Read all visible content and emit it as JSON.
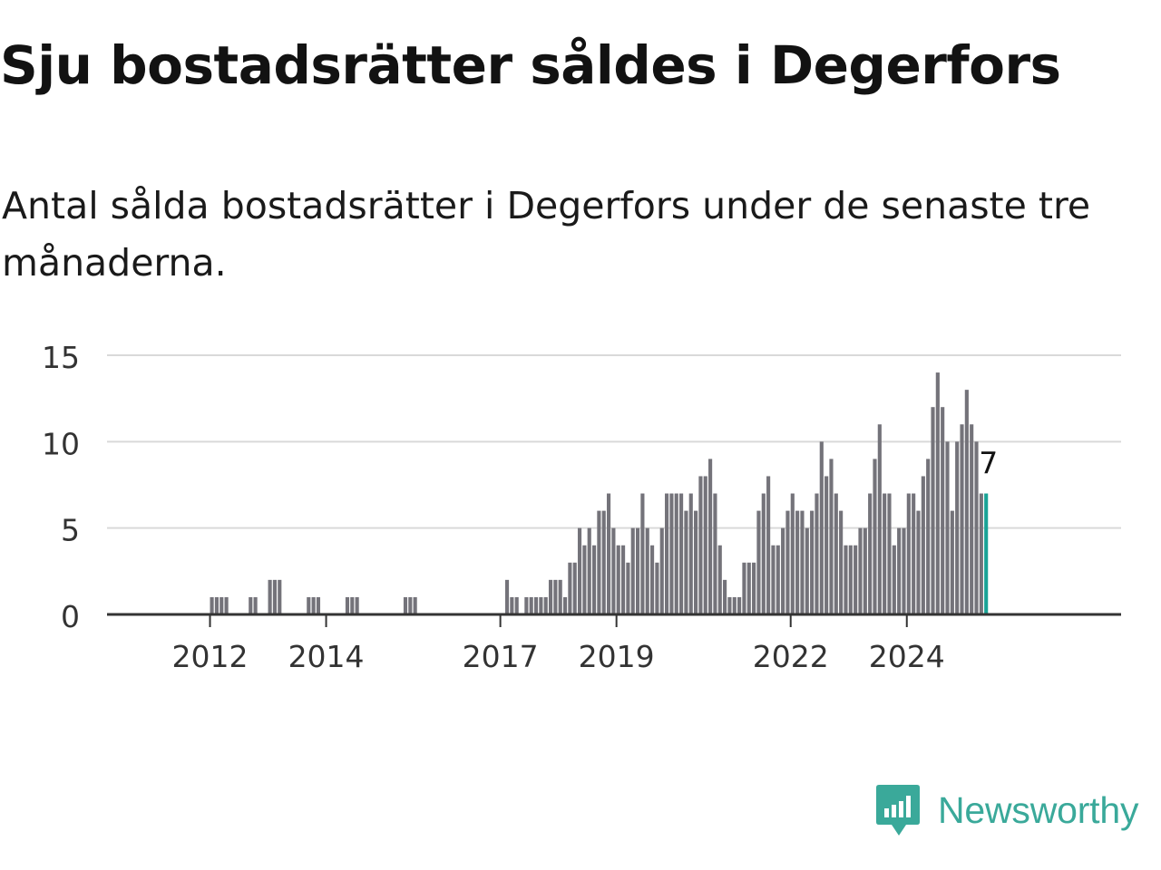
{
  "header": {
    "title": "Sju bostadsrätter såldes i Degerfors",
    "subtitle": "Antal sålda bostadsrätter i Degerfors under de senaste tre månaderna."
  },
  "brand": {
    "name": "Newsworthy",
    "icon": "newsworthy-logo-icon",
    "color": "#3aa99a"
  },
  "colors": {
    "bar": "#74737a",
    "highlight": "#1aa396",
    "grid": "#d9d9d9",
    "axis": "#333333"
  },
  "chart_data": {
    "type": "bar",
    "start_year": 2011,
    "start_month": 1,
    "ylim": [
      0,
      15
    ],
    "yticks": [
      0,
      5,
      10,
      15
    ],
    "xticks": [
      {
        "year": 2012,
        "label": "2012"
      },
      {
        "year": 2014,
        "label": "2014"
      },
      {
        "year": 2017,
        "label": "2017"
      },
      {
        "year": 2019,
        "label": "2019"
      },
      {
        "year": 2022,
        "label": "2022"
      },
      {
        "year": 2024,
        "label": "2024"
      }
    ],
    "values": [
      0,
      0,
      0,
      0,
      0,
      0,
      0,
      0,
      0,
      0,
      0,
      0,
      1,
      1,
      1,
      1,
      0,
      0,
      0,
      0,
      1,
      1,
      0,
      0,
      2,
      2,
      2,
      0,
      0,
      0,
      0,
      0,
      1,
      1,
      1,
      0,
      0,
      0,
      0,
      0,
      1,
      1,
      1,
      0,
      0,
      0,
      0,
      0,
      0,
      0,
      0,
      0,
      1,
      1,
      1,
      0,
      0,
      0,
      0,
      0,
      0,
      0,
      0,
      0,
      0,
      0,
      0,
      0,
      0,
      0,
      0,
      0,
      0,
      2,
      1,
      1,
      0,
      1,
      1,
      1,
      1,
      1,
      2,
      2,
      2,
      1,
      3,
      3,
      5,
      4,
      5,
      4,
      6,
      6,
      7,
      5,
      4,
      4,
      3,
      5,
      5,
      7,
      5,
      4,
      3,
      5,
      7,
      7,
      7,
      7,
      6,
      7,
      6,
      8,
      8,
      9,
      7,
      4,
      2,
      1,
      1,
      1,
      3,
      3,
      3,
      6,
      7,
      8,
      4,
      4,
      5,
      6,
      7,
      6,
      6,
      5,
      6,
      7,
      10,
      8,
      9,
      7,
      6,
      4,
      4,
      4,
      5,
      5,
      7,
      9,
      11,
      7,
      7,
      4,
      5,
      5,
      7,
      7,
      6,
      8,
      9,
      12,
      14,
      12,
      10,
      6,
      10,
      11,
      13,
      11,
      10,
      7,
      7
    ],
    "last_label": "7"
  }
}
